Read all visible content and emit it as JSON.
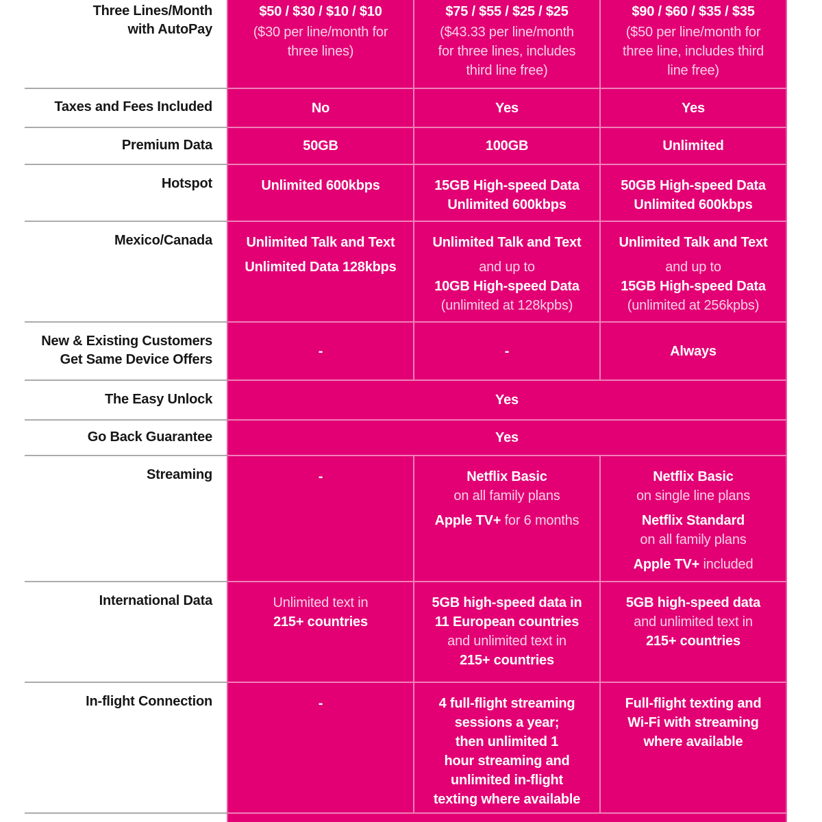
{
  "brand": {
    "magenta": "#E20074",
    "label_text_color": "#161616",
    "divider_gray": "#ABABAB"
  },
  "rows": {
    "pricing": {
      "label": [
        "Three Lines/Month",
        "with AutoPay"
      ],
      "col1": {
        "price": "$50 / $30 / $10 / $10",
        "note": [
          "($30 per line/month for",
          "three lines)"
        ]
      },
      "col2": {
        "price": "$75 / $55 / $25 / $25",
        "note": [
          "($43.33 per line/month",
          "for three lines, includes",
          "third line free)"
        ]
      },
      "col3": {
        "price": "$90 / $60 / $35 / $35",
        "note": [
          "($50 per line/month for",
          "three line, includes third",
          "line free)"
        ]
      }
    },
    "taxes_fees": {
      "label": "Taxes and Fees Included",
      "col1": "No",
      "col2": "Yes",
      "col3": "Yes"
    },
    "premium_data": {
      "label": "Premium Data",
      "col1": "50GB",
      "col2": "100GB",
      "col3": "Unlimited"
    },
    "hotspot": {
      "label": "Hotspot",
      "col1": [
        "Unlimited 600kbps"
      ],
      "col2": [
        "15GB High-speed Data",
        "Unlimited 600kbps"
      ],
      "col3": [
        "50GB High-speed Data",
        "Unlimited 600kbps"
      ]
    },
    "mexico_canada": {
      "label": "Mexico/Canada",
      "col1": {
        "p1": "Unlimited Talk and Text",
        "p2": "Unlimited Data 128kbps"
      },
      "col2": {
        "p1": "Unlimited Talk and Text",
        "p2_light1": "and up to",
        "p2_bold": "10GB High-speed Data",
        "p2_light2": "(unlimited at 128kpbs)"
      },
      "col3": {
        "p1": "Unlimited Talk and Text",
        "p2_light1": "and up to",
        "p2_bold": "15GB High-speed Data",
        "p2_light2": "(unlimited at 256kpbs)"
      }
    },
    "device_offers": {
      "label": [
        "New & Existing Customers",
        "Get Same Device Offers"
      ],
      "col1": "-",
      "col2": "-",
      "col3": "Always"
    },
    "easy_unlock": {
      "label": "The Easy Unlock",
      "value": "Yes"
    },
    "go_back": {
      "label": "Go Back Guarantee",
      "value": "Yes"
    },
    "streaming": {
      "label": "Streaming",
      "col1": "-",
      "col2": {
        "p1_bold": "Netflix Basic",
        "p1_light": "on all family plans",
        "p2_bold": "Apple TV+",
        "p2_light": " for 6 months"
      },
      "col3": {
        "p1_bold": "Netflix Basic",
        "p1_light": "on single line plans",
        "p2_bold": "Netflix Standard",
        "p2_light": "on all family plans",
        "p3_bold": "Apple TV+",
        "p3_light": " included"
      }
    },
    "international": {
      "label": "International Data",
      "col1": {
        "light": "Unlimited text in",
        "bold": "215+ countries"
      },
      "col2": {
        "bold1": [
          "5GB high-speed data in",
          "11 European countries"
        ],
        "light": "and unlimited text in",
        "bold2": "215+ countries"
      },
      "col3": {
        "bold1": "5GB high-speed data",
        "light": "and unlimited text in",
        "bold2": "215+ countries"
      }
    },
    "inflight": {
      "label": "In-flight Connection",
      "col1": "-",
      "col2": [
        "4 full-flight streaming",
        "sessions a year;",
        "then unlimited 1",
        "hour streaming and",
        "unlimited in-flight",
        "texting where available"
      ],
      "col3": [
        "Full-flight texting and",
        "Wi-Fi with streaming",
        "where available"
      ]
    }
  }
}
